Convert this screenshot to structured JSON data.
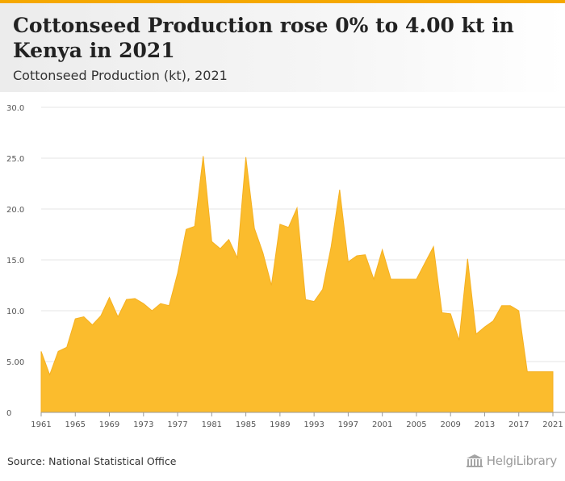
{
  "header": {
    "title": "Cottonseed Production rose 0% to 4.00 kt in Kenya in 2021",
    "subtitle": "Cottonseed Production (kt), 2021"
  },
  "footer": {
    "source": "Source: National Statistical Office",
    "logo_text": "HelgiLibrary"
  },
  "colors": {
    "accent": "#f5a800",
    "area_fill": "#fbbc2d",
    "grid": "#e6e6e6"
  },
  "chart_data": {
    "type": "area",
    "title": "Cottonseed Production rose 0% to 4.00 kt in Kenya in 2021",
    "subtitle": "Cottonseed Production (kt), 2021",
    "ylim": [
      0,
      30
    ],
    "yticks": [
      "0",
      "5.00",
      "10.0",
      "15.0",
      "20.0",
      "25.0",
      "30.0"
    ],
    "ytick_values": [
      0,
      5,
      10,
      15,
      20,
      25,
      30
    ],
    "xtick_labels": [
      "1961",
      "1965",
      "1969",
      "1973",
      "1977",
      "1981",
      "1985",
      "1989",
      "1993",
      "1997",
      "2001",
      "2005",
      "2009",
      "2013",
      "2017",
      "2021"
    ],
    "xlim": [
      1961,
      2021
    ],
    "grid": true,
    "legend": "none",
    "x": [
      1961,
      1962,
      1963,
      1964,
      1965,
      1966,
      1967,
      1968,
      1969,
      1970,
      1971,
      1972,
      1973,
      1974,
      1975,
      1976,
      1977,
      1978,
      1979,
      1980,
      1981,
      1982,
      1983,
      1984,
      1985,
      1986,
      1987,
      1988,
      1989,
      1990,
      1991,
      1992,
      1993,
      1994,
      1995,
      1996,
      1997,
      1998,
      1999,
      2000,
      2001,
      2002,
      2003,
      2004,
      2005,
      2006,
      2007,
      2008,
      2009,
      2010,
      2011,
      2012,
      2013,
      2014,
      2015,
      2016,
      2017,
      2018,
      2019,
      2020,
      2021
    ],
    "values": [
      6.0,
      3.7,
      6.0,
      6.4,
      9.2,
      9.4,
      8.6,
      9.5,
      11.3,
      9.4,
      11.1,
      11.2,
      10.7,
      10.0,
      10.7,
      10.5,
      13.7,
      18.0,
      18.3,
      25.2,
      16.8,
      16.1,
      17.0,
      15.2,
      25.1,
      18.1,
      15.7,
      12.5,
      18.5,
      18.2,
      20.1,
      11.1,
      10.9,
      12.1,
      16.3,
      21.9,
      14.8,
      15.4,
      15.5,
      13.1,
      16.0,
      13.1,
      13.1,
      13.1,
      13.1,
      14.7,
      16.3,
      9.8,
      9.7,
      7.1,
      15.1,
      7.7,
      8.4,
      9.0,
      10.5,
      10.5,
      10.0,
      4.0,
      4.0,
      4.0,
      4.0
    ]
  }
}
